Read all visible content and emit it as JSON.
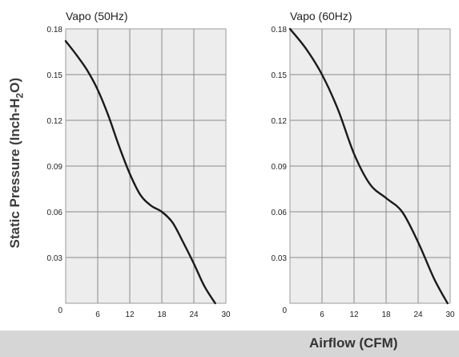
{
  "chart_data": [
    {
      "type": "line",
      "title": "Vapo (50Hz)",
      "xlabel": "Airflow (CFM)",
      "ylabel": "Static Pressure (Inch-H2O)",
      "xlim": [
        0,
        30
      ],
      "ylim": [
        0,
        0.18
      ],
      "x_ticks": [
        "0",
        "6",
        "12",
        "18",
        "24",
        "30"
      ],
      "y_ticks": [
        "0",
        "0.03",
        "0.06",
        "0.09",
        "0.12",
        "0.15",
        "0.18"
      ],
      "grid": true,
      "x": [
        0,
        2,
        4,
        6,
        8,
        10,
        12,
        14,
        16,
        18,
        20,
        22,
        24,
        26,
        28
      ],
      "y": [
        0.172,
        0.163,
        0.153,
        0.14,
        0.123,
        0.103,
        0.085,
        0.071,
        0.064,
        0.06,
        0.053,
        0.04,
        0.026,
        0.011,
        0.0
      ]
    },
    {
      "type": "line",
      "title": "Vapo (60Hz)",
      "xlabel": "Airflow (CFM)",
      "ylabel": "Static Pressure (Inch-H2O)",
      "xlim": [
        0,
        30
      ],
      "ylim": [
        0,
        0.18
      ],
      "x_ticks": [
        "0",
        "6",
        "12",
        "18",
        "24",
        "30"
      ],
      "y_ticks": [
        "0",
        "0.03",
        "0.06",
        "0.09",
        "0.12",
        "0.15",
        "0.18"
      ],
      "grid": true,
      "x": [
        0,
        3,
        6,
        9,
        12,
        15,
        18,
        21,
        24,
        27,
        29.5
      ],
      "y": [
        0.18,
        0.167,
        0.15,
        0.127,
        0.098,
        0.078,
        0.069,
        0.06,
        0.04,
        0.016,
        0.0
      ]
    }
  ],
  "labels": {
    "ylabel": "Static Pressure (Inch-H",
    "ylabel_sub": "2",
    "ylabel_tail": "O)",
    "xlabel": "Airflow (CFM)"
  }
}
